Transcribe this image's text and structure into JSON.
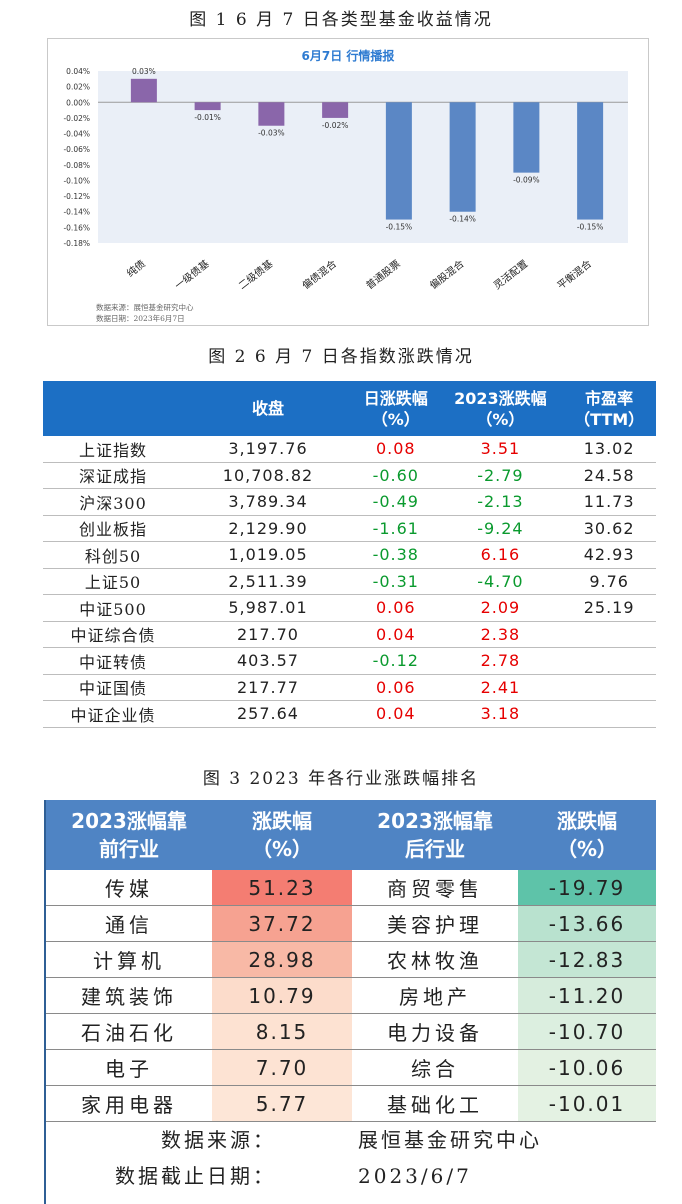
{
  "fig1": {
    "caption": "图 1   6 月 7 日各类型基金收益情况",
    "chart_data": {
      "type": "bar",
      "title": "6月7日  行情播报",
      "categories": [
        "纯债",
        "一级债基",
        "二级债基",
        "偏债混合",
        "普通股票",
        "偏股混合",
        "灵活配置",
        "平衡混合"
      ],
      "values": [
        0.03,
        -0.01,
        -0.03,
        -0.02,
        -0.15,
        -0.14,
        -0.09,
        -0.15
      ],
      "value_labels": [
        "0.03%",
        "-0.01%",
        "-0.03%",
        "-0.02%",
        "-0.15%",
        "-0.14%",
        "-0.09%",
        "-0.15%"
      ],
      "ylim": [
        -0.18,
        0.04
      ],
      "yticks": [
        0.04,
        0.02,
        0.0,
        -0.02,
        -0.04,
        -0.06,
        -0.08,
        -0.1,
        -0.12,
        -0.14,
        -0.16,
        -0.18
      ],
      "ytick_labels": [
        "0.04%",
        "0.02%",
        "0.00%",
        "-0.02%",
        "-0.04%",
        "-0.06%",
        "-0.08%",
        "-0.10%",
        "-0.12%",
        "-0.14%",
        "-0.16%",
        "-0.18%"
      ],
      "colors": {
        "bond": "#8a66aa",
        "equity": "#5b87c5",
        "plot_bg": "#eaeff7",
        "title": "#2e7bd1"
      },
      "series_groups": [
        "bond",
        "bond",
        "bond",
        "bond",
        "equity",
        "equity",
        "equity",
        "equity"
      ]
    },
    "source": "数据来源：展恒基金研究中心",
    "date": "数据日期：2023年6月7日"
  },
  "fig2": {
    "caption": "图 2   6 月 7 日各指数涨跌情况",
    "headers": [
      "",
      "收盘",
      "日涨跌幅\n（%）",
      "2023涨跌幅\n（%）",
      "市盈率\n（TTM）"
    ],
    "rows": [
      {
        "name": "上证指数",
        "close": "3,197.76",
        "day": "0.08",
        "ytd": "3.51",
        "pe": "13.02"
      },
      {
        "name": "深证成指",
        "close": "10,708.82",
        "day": "-0.60",
        "ytd": "-2.79",
        "pe": "24.58"
      },
      {
        "name": "沪深300",
        "close": "3,789.34",
        "day": "-0.49",
        "ytd": "-2.13",
        "pe": "11.73"
      },
      {
        "name": "创业板指",
        "close": "2,129.90",
        "day": "-1.61",
        "ytd": "-9.24",
        "pe": "30.62"
      },
      {
        "name": "科创50",
        "close": "1,019.05",
        "day": "-0.38",
        "ytd": "6.16",
        "pe": "42.93"
      },
      {
        "name": "上证50",
        "close": "2,511.39",
        "day": "-0.31",
        "ytd": "-4.70",
        "pe": "9.76"
      },
      {
        "name": "中证500",
        "close": "5,987.01",
        "day": "0.06",
        "ytd": "2.09",
        "pe": "25.19"
      },
      {
        "name": "中证综合债",
        "close": "217.70",
        "day": "0.04",
        "ytd": "2.38",
        "pe": ""
      },
      {
        "name": "中证转债",
        "close": "403.57",
        "day": "-0.12",
        "ytd": "2.78",
        "pe": ""
      },
      {
        "name": "中证国债",
        "close": "217.77",
        "day": "0.06",
        "ytd": "2.41",
        "pe": ""
      },
      {
        "name": "中证企业债",
        "close": "257.64",
        "day": "0.04",
        "ytd": "3.18",
        "pe": ""
      }
    ],
    "colors": {
      "header": "#1c6fc4",
      "positive": "#e60000",
      "negative": "#0a9a2e"
    }
  },
  "fig3": {
    "caption": "图 3   2023 年各行业涨跌幅排名",
    "headers": [
      "2023涨幅靠\n前行业",
      "涨跌幅\n（%）",
      "2023涨幅靠\n后行业",
      "涨跌幅\n（%）"
    ],
    "rows": [
      {
        "top": "传媒",
        "top_val": "51.23",
        "top_bg": "#f47d72",
        "bottom": "商贸零售",
        "bottom_val": "-19.79",
        "bottom_bg": "#5ec3a9"
      },
      {
        "top": "通信",
        "top_val": "37.72",
        "top_bg": "#f6a291",
        "bottom": "美容护理",
        "bottom_val": "-13.66",
        "bottom_bg": "#b9e2cf"
      },
      {
        "top": "计算机",
        "top_val": "28.98",
        "top_bg": "#f8b9a6",
        "bottom": "农林牧渔",
        "bottom_val": "-12.83",
        "bottom_bg": "#c4e6d4"
      },
      {
        "top": "建筑装饰",
        "top_val": "10.79",
        "top_bg": "#fcdccb",
        "bottom": "房地产",
        "bottom_val": "-11.20",
        "bottom_bg": "#d6ecdc"
      },
      {
        "top": "石油石化",
        "top_val": "8.15",
        "top_bg": "#fde2d2",
        "bottom": "电力设备",
        "bottom_val": "-10.70",
        "bottom_bg": "#dcefe0"
      },
      {
        "top": "电子",
        "top_val": "7.70",
        "top_bg": "#fde3d3",
        "bottom": "综合",
        "bottom_val": "-10.06",
        "bottom_bg": "#e3f1e2"
      },
      {
        "top": "家用电器",
        "top_val": "5.77",
        "top_bg": "#fde6d7",
        "bottom": "基础化工",
        "bottom_val": "-10.01",
        "bottom_bg": "#e4f2e3"
      }
    ],
    "source_key": "数据来源：",
    "source_val": "展恒基金研究中心",
    "date_key": "数据截止日期：",
    "date_val": "2023/6/7",
    "colors": {
      "header": "#4f84c4"
    }
  }
}
